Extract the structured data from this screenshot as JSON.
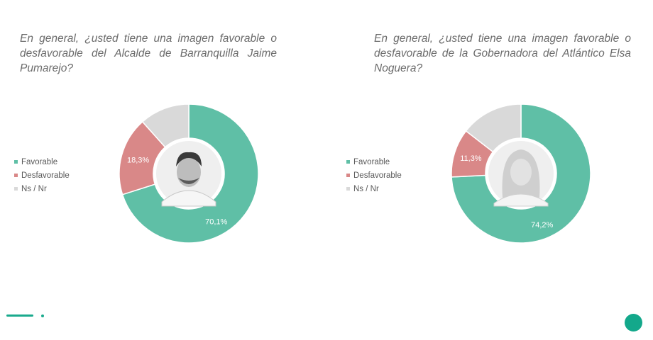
{
  "colors": {
    "favorable": "#5fbfa6",
    "desfavorable": "#d98888",
    "nsnr": "#d9d9d9",
    "accent": "#13a88b"
  },
  "legend": [
    "Favorable",
    "Desfavorable",
    "Ns / Nr"
  ],
  "chart_data": [
    {
      "type": "pie",
      "title": "En general, ¿usted tiene una imagen favorable o desfavorable del Alcalde de Barranquilla Jaime Pumarejo?",
      "categories": [
        "Favorable",
        "Desfavorable",
        "Ns / Nr"
      ],
      "values": [
        70.1,
        18.3,
        11.6
      ],
      "data_labels": [
        "70,1%",
        "18,3%",
        ""
      ],
      "center_image": "portrait",
      "legend_position": "left"
    },
    {
      "type": "pie",
      "title": "En general, ¿usted tiene una imagen favorable o desfavorable de la Gobernadora del Atlántico Elsa Noguera?",
      "categories": [
        "Favorable",
        "Desfavorable",
        "Ns / Nr"
      ],
      "values": [
        74.2,
        11.3,
        14.5
      ],
      "data_labels": [
        "74,2%",
        "11,3%",
        ""
      ],
      "center_image": "portrait",
      "legend_position": "left"
    }
  ]
}
